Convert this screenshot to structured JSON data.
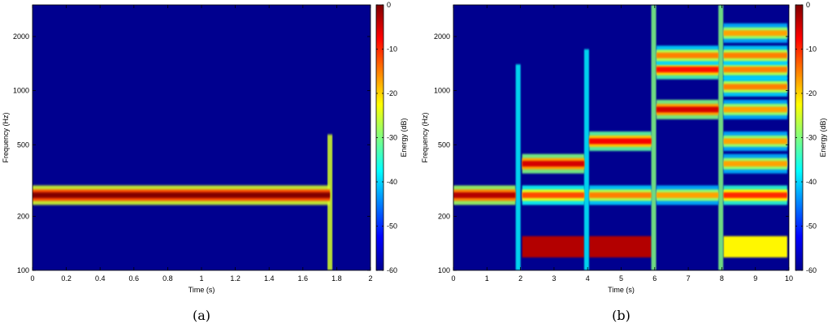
{
  "chart_data": [
    {
      "type": "heatmap",
      "caption": "(a)",
      "xlabel": "Time (s)",
      "ylabel": "Frequency (Hz)",
      "colorbar_label": "Energy (dB)",
      "xlim": [
        0,
        2
      ],
      "ylim": [
        100,
        3000
      ],
      "y_scale": "log",
      "colorbar_range": [
        -60,
        0
      ],
      "colormap": "jet",
      "background_color": "#00008f",
      "x_ticks": [
        "0",
        "0.2",
        "0.4",
        "0.6",
        "0.8",
        "1",
        "1.2",
        "1.4",
        "1.6",
        "1.8",
        "2"
      ],
      "y_ticks": [
        "100",
        "200",
        "500",
        "1000",
        "2000"
      ],
      "colorbar_ticks": [
        "0",
        "-10",
        "-20",
        "-30",
        "-40",
        "-50",
        "-60"
      ],
      "bands": [
        {
          "t_start": 0,
          "t_end": 1.76,
          "freq": 262,
          "energy_db": 0
        }
      ],
      "onsets": [
        {
          "time": 1.76,
          "f_low": 100,
          "f_high": 570,
          "energy_db": -25
        }
      ]
    },
    {
      "type": "heatmap",
      "caption": "(b)",
      "xlabel": "Time (s)",
      "ylabel": "Frequency (Hz)",
      "colorbar_label": "Energy (dB)",
      "xlim": [
        0,
        10
      ],
      "ylim": [
        100,
        3000
      ],
      "y_scale": "log",
      "colorbar_range": [
        -60,
        0
      ],
      "colormap": "jet",
      "background_color": "#00008f",
      "x_ticks": [
        "0",
        "1",
        "2",
        "3",
        "4",
        "5",
        "6",
        "7",
        "8",
        "9",
        "10"
      ],
      "y_ticks": [
        "100",
        "200",
        "500",
        "1000",
        "2000"
      ],
      "colorbar_ticks": [
        "0",
        "-10",
        "-20",
        "-30",
        "-40",
        "-50",
        "-60"
      ],
      "bands": [
        {
          "t_start": 0,
          "t_end": 1.85,
          "freq": 262,
          "energy_db": -3
        },
        {
          "t_start": 2.05,
          "t_end": 3.9,
          "freq": 262,
          "energy_db": -12
        },
        {
          "t_start": 4.05,
          "t_end": 5.9,
          "freq": 262,
          "energy_db": -15
        },
        {
          "t_start": 6.05,
          "t_end": 7.9,
          "freq": 262,
          "energy_db": -17
        },
        {
          "t_start": 8.05,
          "t_end": 9.95,
          "freq": 262,
          "energy_db": -10
        },
        {
          "t_start": 2.05,
          "t_end": 3.9,
          "freq": 392,
          "energy_db": -5
        },
        {
          "t_start": 4.05,
          "t_end": 5.9,
          "freq": 523,
          "energy_db": -7
        },
        {
          "t_start": 6.05,
          "t_end": 7.9,
          "freq": 785,
          "energy_db": -5
        },
        {
          "t_start": 6.05,
          "t_end": 7.9,
          "freq": 1310,
          "energy_db": -8
        },
        {
          "t_start": 6.05,
          "t_end": 7.9,
          "freq": 1570,
          "energy_db": -15
        },
        {
          "t_start": 8.05,
          "t_end": 9.95,
          "freq": 392,
          "energy_db": -17
        },
        {
          "t_start": 8.05,
          "t_end": 9.95,
          "freq": 523,
          "energy_db": -17
        },
        {
          "t_start": 8.05,
          "t_end": 9.95,
          "freq": 785,
          "energy_db": -17
        },
        {
          "t_start": 8.05,
          "t_end": 9.95,
          "freq": 1050,
          "energy_db": -15
        },
        {
          "t_start": 8.05,
          "t_end": 9.95,
          "freq": 1310,
          "energy_db": -15
        },
        {
          "t_start": 8.05,
          "t_end": 9.95,
          "freq": 1570,
          "energy_db": -15
        },
        {
          "t_start": 8.05,
          "t_end": 9.95,
          "freq": 2090,
          "energy_db": -17
        }
      ],
      "regions": [
        {
          "t_start": 2.05,
          "t_end": 3.9,
          "f_low": 118,
          "f_high": 155,
          "energy_db": -3
        },
        {
          "t_start": 4.05,
          "t_end": 5.9,
          "f_low": 118,
          "f_high": 155,
          "energy_db": -3
        },
        {
          "t_start": 8.05,
          "t_end": 9.95,
          "f_low": 118,
          "f_high": 155,
          "energy_db": -22
        }
      ],
      "onsets": [
        {
          "time": 1.93,
          "f_low": 100,
          "f_high": 1400,
          "energy_db": -38
        },
        {
          "time": 3.97,
          "f_low": 100,
          "f_high": 1700,
          "energy_db": -38
        },
        {
          "time": 5.97,
          "f_low": 100,
          "f_high": 3000,
          "energy_db": -30
        },
        {
          "time": 7.97,
          "f_low": 100,
          "f_high": 3000,
          "energy_db": -30
        }
      ]
    }
  ]
}
